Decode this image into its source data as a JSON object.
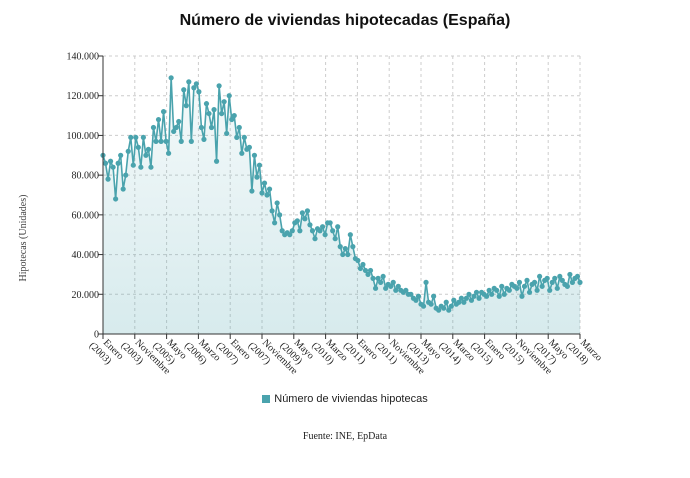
{
  "chart_data": {
    "type": "area",
    "title": "Número de viviendas hipotecadas (España)",
    "ylabel": "Hipotecas (Unidades)",
    "xlabel": "",
    "ylim": [
      0,
      140000
    ],
    "y_ticks": [
      0,
      20000,
      40000,
      60000,
      80000,
      100000,
      120000,
      140000
    ],
    "y_tick_labels": [
      "0",
      "20.000",
      "40.000",
      "60.000",
      "80.000",
      "100.000",
      "120.000",
      "140.000"
    ],
    "x_ticks": [
      {
        "label": "Enero",
        "sub": "(2003)"
      },
      {
        "label": "Noviembre",
        "sub": "(2003)"
      },
      {
        "label": "Mayo",
        "sub": "(2005)"
      },
      {
        "label": "Marzo",
        "sub": "(2006)"
      },
      {
        "label": "Enero",
        "sub": "(2007)"
      },
      {
        "label": "Noviembre",
        "sub": "(2007)"
      },
      {
        "label": "Mayo",
        "sub": "(2009)"
      },
      {
        "label": "Marzo",
        "sub": "(2010)"
      },
      {
        "label": "Enero",
        "sub": "(2011)"
      },
      {
        "label": "Noviembre",
        "sub": "(2011)"
      },
      {
        "label": "Mayo",
        "sub": "(2013)"
      },
      {
        "label": "Marzo",
        "sub": "(2014)"
      },
      {
        "label": "Enero",
        "sub": "(2015)"
      },
      {
        "label": "Noviembre",
        "sub": "(2015)"
      },
      {
        "label": "Mayo",
        "sub": "(2017)"
      },
      {
        "label": "Marzo",
        "sub": "(2018)"
      }
    ],
    "grid": true,
    "legend_position": "bottom",
    "series": [
      {
        "name": "Número de viviendas hipotecas",
        "color": "#4aa3ad",
        "values": [
          90000,
          86000,
          78000,
          87000,
          84000,
          68000,
          86000,
          90000,
          73000,
          80000,
          92000,
          99000,
          85000,
          99000,
          94000,
          84000,
          99000,
          90000,
          93000,
          84000,
          104000,
          97000,
          108000,
          97000,
          112000,
          97000,
          91000,
          129000,
          102000,
          104000,
          107000,
          97000,
          123000,
          115000,
          127000,
          97000,
          124000,
          126000,
          122000,
          104000,
          98000,
          116000,
          111000,
          104000,
          113000,
          87000,
          125000,
          111000,
          117000,
          101000,
          120000,
          108000,
          110000,
          99000,
          104000,
          91000,
          99000,
          93000,
          94000,
          72000,
          90000,
          79000,
          85000,
          71000,
          76000,
          70000,
          73000,
          62000,
          56000,
          66000,
          60000,
          52000,
          50000,
          51000,
          50000,
          52000,
          56000,
          57000,
          52000,
          61000,
          58000,
          62000,
          55000,
          52000,
          48000,
          53000,
          52000,
          54000,
          50000,
          56000,
          56000,
          52000,
          48000,
          54000,
          44000,
          40000,
          43000,
          40000,
          50000,
          44000,
          38000,
          37000,
          33000,
          35000,
          32000,
          30000,
          32000,
          28000,
          23000,
          28000,
          26000,
          29000,
          23000,
          25000,
          24000,
          26000,
          22000,
          24000,
          22000,
          21000,
          22000,
          20000,
          20000,
          18000,
          17000,
          19000,
          15000,
          14000,
          26000,
          16000,
          15000,
          19000,
          13000,
          12000,
          14000,
          13000,
          16000,
          12000,
          14000,
          17000,
          15000,
          16000,
          18000,
          16000,
          18000,
          20000,
          17000,
          19000,
          21000,
          18000,
          21000,
          20000,
          19000,
          22000,
          20000,
          23000,
          22000,
          19000,
          24000,
          20000,
          23000,
          22000,
          25000,
          24000,
          23000,
          26000,
          19000,
          24000,
          27000,
          21000,
          25000,
          26000,
          22000,
          29000,
          24000,
          27000,
          28000,
          22000,
          26000,
          28000,
          23000,
          29000,
          27000,
          25000,
          24000,
          30000,
          26000,
          28000,
          29000,
          26000
        ]
      }
    ]
  },
  "legend": {
    "label": "Número de viviendas hipotecas"
  },
  "source": "Fuente: INE, EpData"
}
